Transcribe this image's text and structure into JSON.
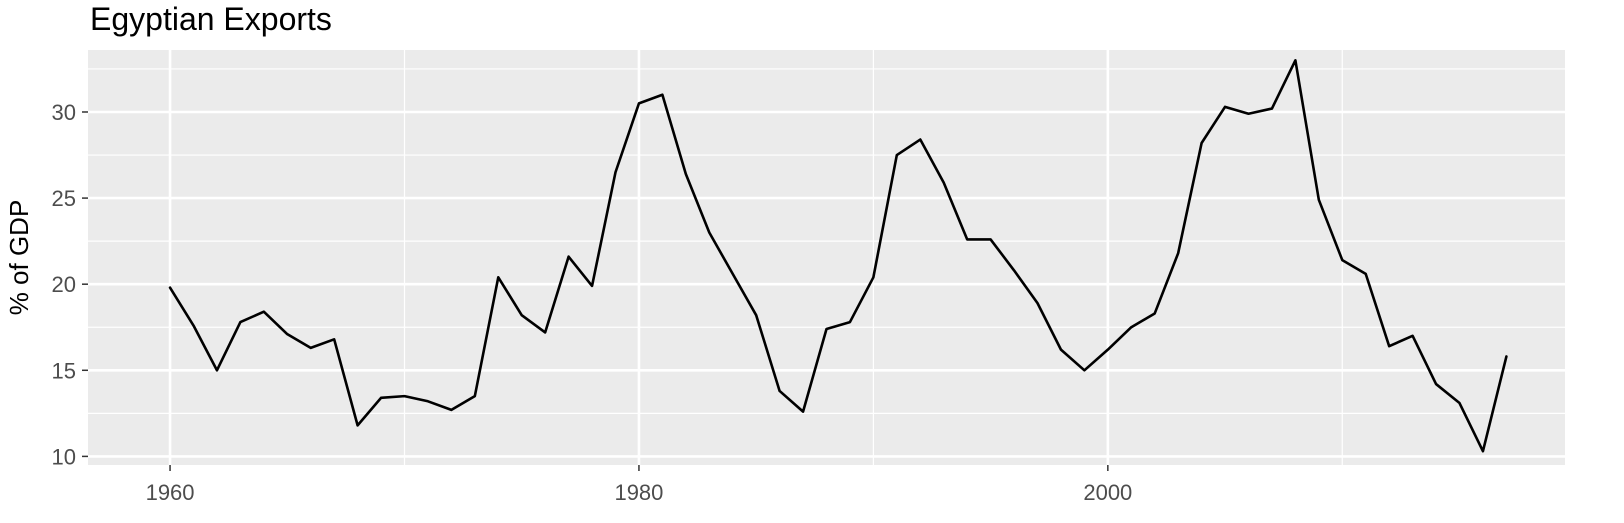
{
  "chart_data": {
    "type": "line",
    "title": "Egyptian Exports",
    "xlabel": "",
    "ylabel": "% of GDP",
    "xlim": [
      1956.5,
      2019.5
    ],
    "ylim": [
      9.5,
      33.6
    ],
    "x_ticks": [
      1960,
      1980,
      2000
    ],
    "y_ticks": [
      10,
      15,
      20,
      25,
      30
    ],
    "grid": true,
    "background": "#ebebeb",
    "grid_color": "#ffffff",
    "line_color": "#000000",
    "x": [
      1960,
      1961,
      1962,
      1963,
      1964,
      1965,
      1966,
      1967,
      1968,
      1969,
      1970,
      1971,
      1972,
      1973,
      1974,
      1975,
      1976,
      1977,
      1978,
      1979,
      1980,
      1981,
      1982,
      1983,
      1984,
      1985,
      1986,
      1987,
      1988,
      1989,
      1990,
      1991,
      1992,
      1993,
      1994,
      1995,
      1996,
      1997,
      1998,
      1999,
      2000,
      2001,
      2002,
      2003,
      2004,
      2005,
      2006,
      2007,
      2008,
      2009,
      2010,
      2011,
      2012,
      2013,
      2014,
      2015,
      2016,
      2017
    ],
    "values": [
      19.8,
      17.6,
      15.0,
      17.8,
      18.4,
      17.1,
      16.3,
      16.8,
      11.8,
      13.4,
      13.5,
      13.2,
      12.7,
      13.5,
      20.4,
      18.2,
      17.2,
      21.6,
      19.9,
      26.5,
      30.5,
      31.0,
      26.4,
      23.0,
      20.6,
      18.2,
      13.8,
      12.6,
      17.4,
      17.8,
      20.4,
      27.5,
      28.4,
      25.9,
      22.6,
      22.6,
      20.8,
      18.9,
      16.2,
      15.0,
      16.2,
      17.5,
      18.3,
      21.8,
      28.2,
      30.3,
      29.9,
      30.2,
      33.0,
      24.9,
      21.4,
      20.6,
      16.4,
      17.0,
      14.2,
      13.1,
      10.3,
      15.8
    ]
  }
}
